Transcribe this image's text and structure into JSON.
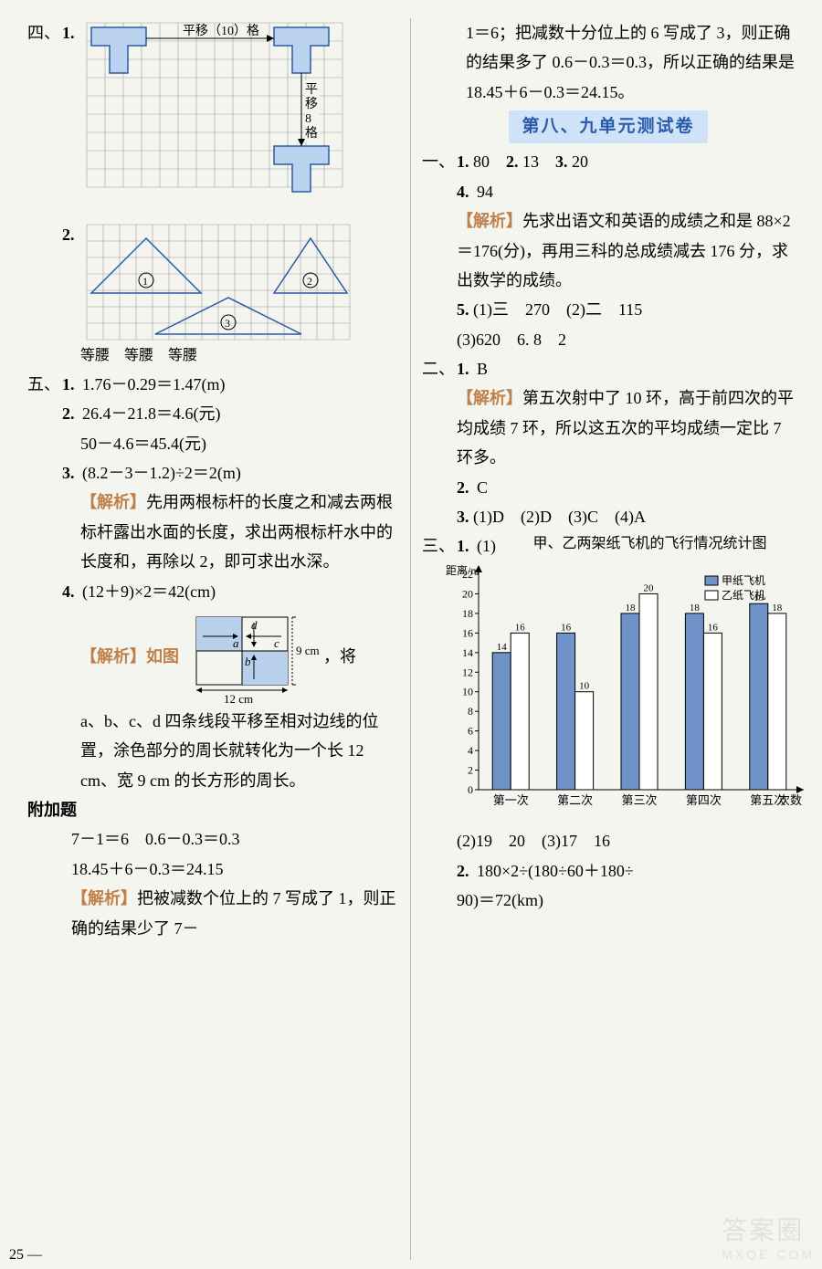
{
  "left": {
    "sec4": {
      "label": "四、",
      "item1": {
        "num": "1.",
        "grid": {
          "cols": 12,
          "rows": 9,
          "cell": 22,
          "label_right_text": "平移（10）格",
          "vlabel": "平移8格"
        }
      },
      "item2": {
        "num": "2.",
        "grid": {
          "cols": 17,
          "rows": 7,
          "cell": 18
        },
        "triangle_labels": [
          "①",
          "②",
          "③"
        ],
        "answer": "等腰　等腰　等腰"
      }
    },
    "sec5": {
      "label": "五、",
      "item1": {
        "num": "1.",
        "text": "1.76－0.29＝1.47(m)"
      },
      "item2": {
        "num": "2.",
        "line1": "26.4－21.8＝4.6(元)",
        "line2": "50－4.6＝45.4(元)"
      },
      "item3": {
        "num": "3.",
        "text": "(8.2－3－1.2)÷2＝2(m)",
        "jiexi": "【解析】先用两根标杆的长度之和减去两根标杆露出水面的长度，求出两根标杆水中的长度和，再除以 2，即可求出水深。"
      },
      "item4": {
        "num": "4.",
        "text": "(12＋9)×2＝42(cm)",
        "jiexi_prefix": "【解析】如图",
        "jiexi_suffix": "，将",
        "diagram": {
          "w": 120,
          "h": 90,
          "label_w": "12 cm",
          "label_h": "9 cm",
          "letters": [
            "a",
            "b",
            "c",
            "d"
          ]
        },
        "jiexi2": "a、b、c、d 四条线段平移至相对边线的位置，涂色部分的周长就转化为一个长 12 cm、宽 9 cm 的长方形的周长。"
      }
    },
    "fujia": {
      "label": "附加题",
      "line1": "7－1＝6　0.6－0.3＝0.3",
      "line2": "18.45＋6－0.3＝24.15",
      "jiexi": "【解析】把被减数个位上的 7 写成了 1，则正确的结果少了 7－"
    }
  },
  "right": {
    "cont": "1＝6；把减数十分位上的 6 写成了 3，则正确的结果多了 0.6－0.3＝0.3，所以正确的结果是 18.45＋6－0.3＝24.15。",
    "unit_header": "第八、九单元测试卷",
    "sec1": {
      "label": "一、",
      "row1": "1. 80　2. 13　3. 20",
      "item4": {
        "num": "4.",
        "text": "94",
        "jiexi": "【解析】先求出语文和英语的成绩之和是 88×2＝176(分)，再用三科的总成绩减去 176 分，求出数学的成绩。"
      },
      "item5": "5. (1)三　270　(2)二　115",
      "item5b": "(3)620　6. 8　2"
    },
    "sec2": {
      "label": "二、",
      "item1": {
        "num": "1.",
        "text": "B",
        "jiexi": "【解析】第五次射中了 10 环，高于前四次的平均成绩 7 环，所以这五次的平均成绩一定比 7 环多。"
      },
      "item2": {
        "num": "2.",
        "text": "C"
      },
      "item3": "3. (1)D　(2)D　(3)C　(4)A"
    },
    "sec3": {
      "label": "三、",
      "item1": {
        "num": "1.",
        "sub": "(1)",
        "chart": {
          "title": "甲、乙两架纸飞机的飞行情况统计图",
          "ylabel": "距离/m",
          "ymax": 22,
          "ystep": 2,
          "categories": [
            "第一次",
            "第二次",
            "第三次",
            "第四次",
            "第五次"
          ],
          "xlabel_suffix": "次数",
          "series_a": {
            "name": "甲纸飞机",
            "values": [
              14,
              16,
              18,
              18,
              19
            ],
            "color": "#6f93c8"
          },
          "series_b": {
            "name": "乙纸飞机",
            "values": [
              16,
              10,
              20,
              16,
              18
            ],
            "color": "#ffffff"
          },
          "bar_border": "#000000",
          "value_fontsize": 11,
          "axis_fontsize": 12
        },
        "sub2": "(2)19　20　(3)17　16"
      },
      "item2": {
        "num": "2.",
        "line1": "180×2÷(180÷60＋180÷",
        "line2": "90)＝72(km)"
      }
    }
  },
  "page_num": "25",
  "watermark": {
    "big": "答案圈",
    "small": "MXQE.COM"
  }
}
